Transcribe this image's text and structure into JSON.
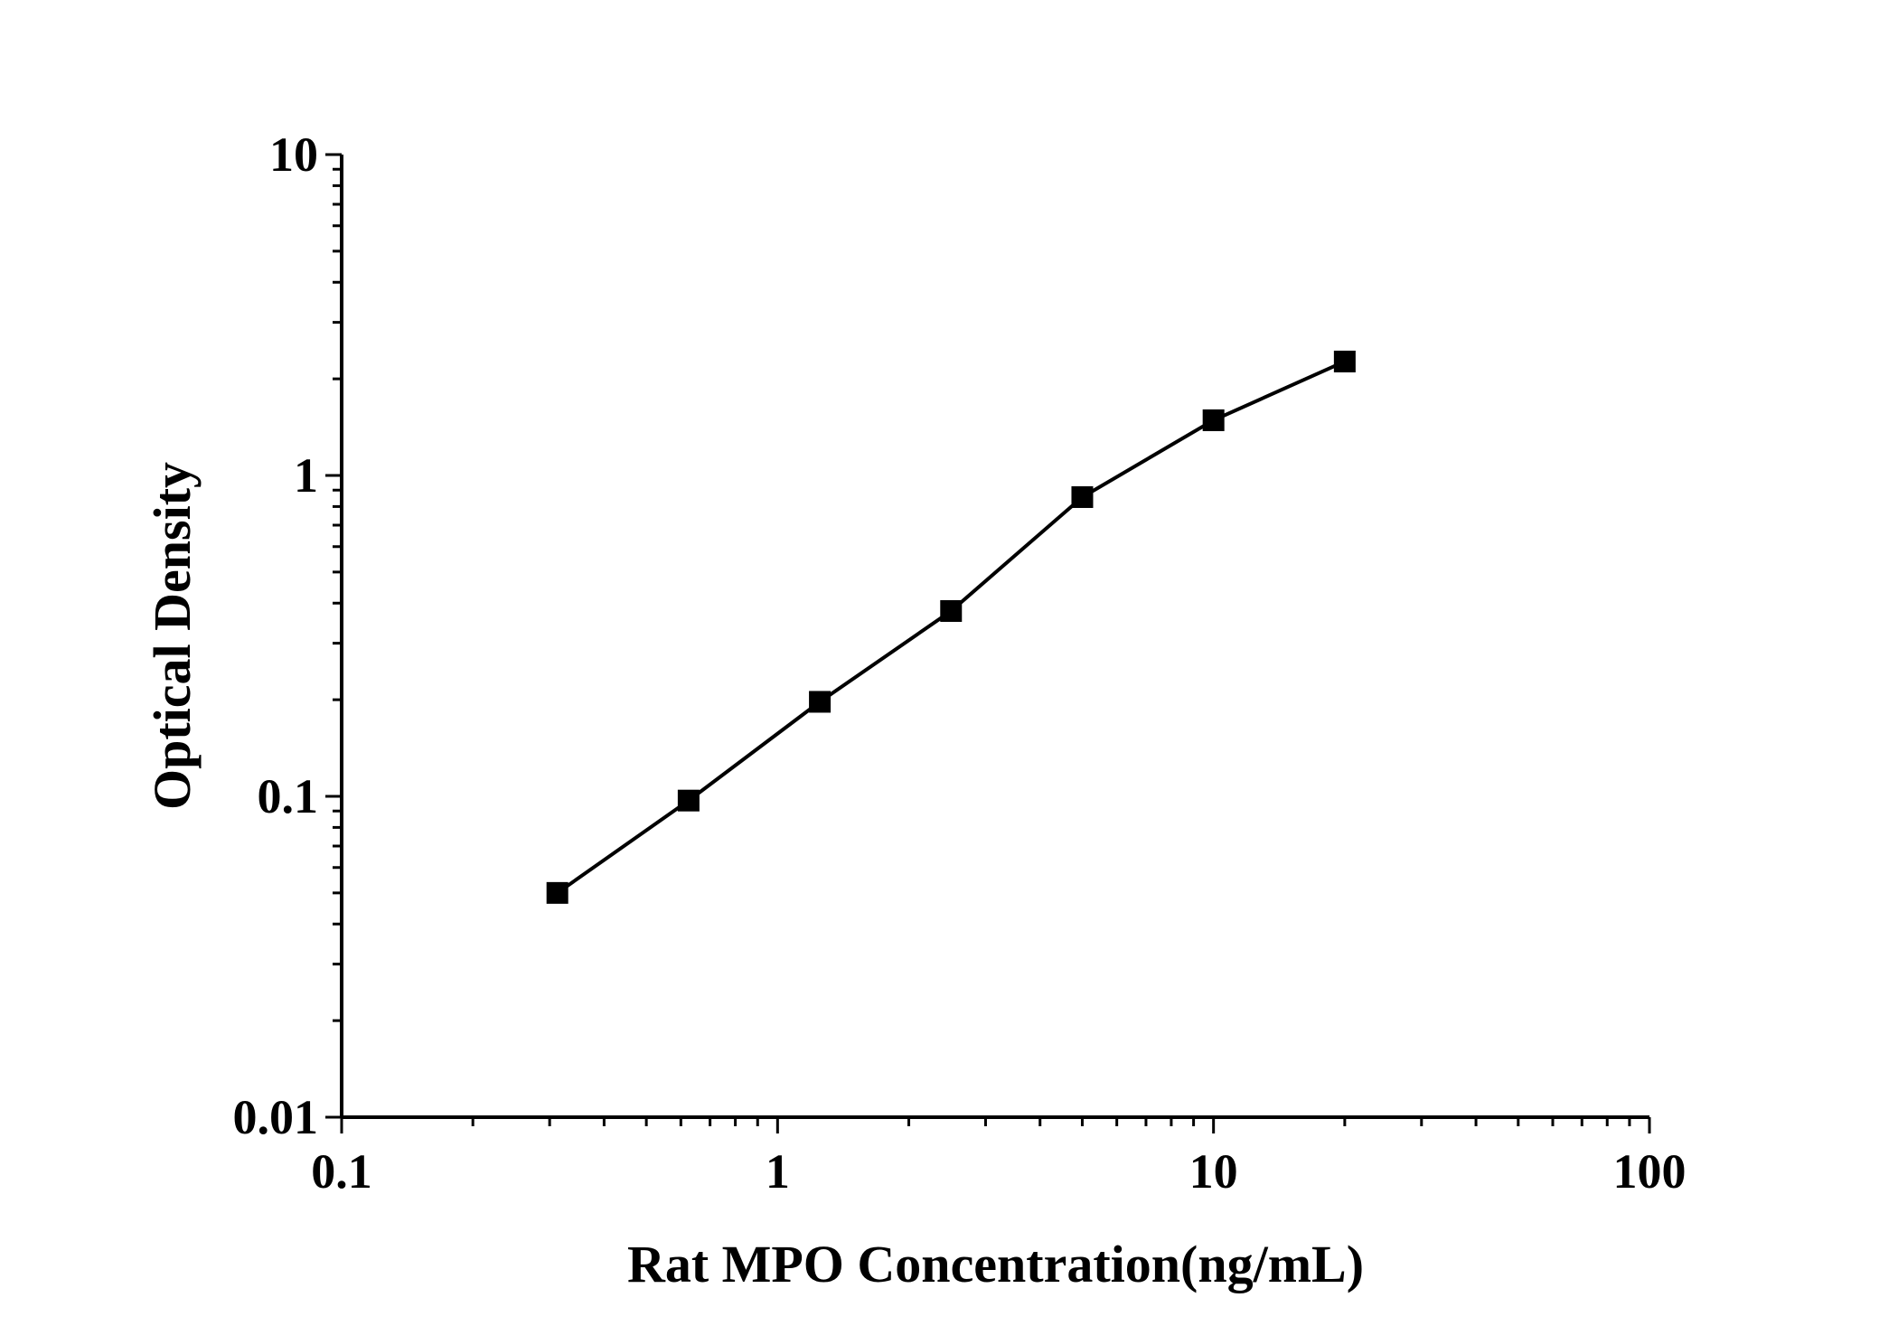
{
  "chart_data": {
    "type": "line",
    "title": "",
    "xlabel": "Rat MPO Concentration(ng/mL)",
    "ylabel": "Optical Density",
    "xscale": "log",
    "yscale": "log",
    "xlim": [
      0.1,
      100
    ],
    "ylim": [
      0.01,
      10
    ],
    "x_ticks": [
      "0.1",
      "1",
      "10",
      "100"
    ],
    "y_ticks": [
      "0.01",
      "0.1",
      "1",
      "10"
    ],
    "grid": false,
    "legend": "none",
    "series": [
      {
        "marker": "square",
        "color": "#000000",
        "x": [
          0.3125,
          0.625,
          1.25,
          2.5,
          5,
          10,
          20
        ],
        "y": [
          0.05,
          0.097,
          0.197,
          0.378,
          0.856,
          1.486,
          2.265
        ]
      }
    ]
  }
}
